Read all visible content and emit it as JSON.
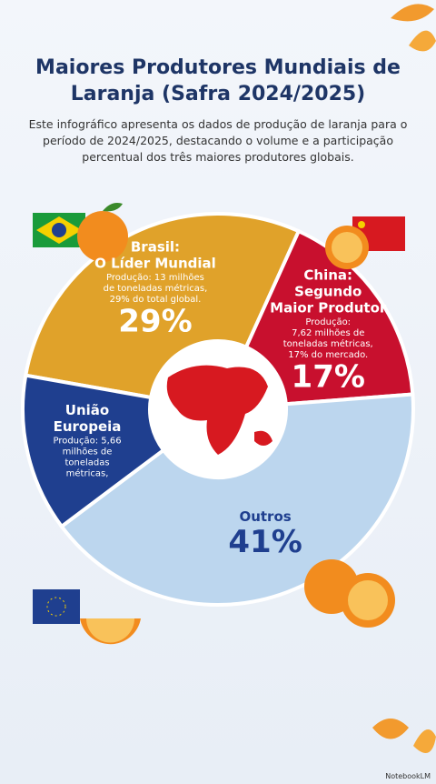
{
  "chart_data": {
    "type": "pie",
    "title": "Maiores Produtores Mundiais de Laranja (Safra 2024/2025)",
    "subtitle": "Este infográfico apresenta os dados de produção de laranja para o período de 2024/2025, destacando o volume e a participação percentual dos três maiores produtores globais.",
    "categories": [
      "Brasil",
      "China",
      "Outros",
      "União Europeia"
    ],
    "headings": [
      [
        "Brasil:",
        "O Líder Mundial"
      ],
      [
        "China:",
        "Segundo",
        "Maior Produtor"
      ],
      [
        "Outros"
      ],
      [
        "União",
        "Europeia"
      ]
    ],
    "descriptions": [
      [
        "Produção: 13 milhões",
        "de toneladas métricas,",
        "29% do total global."
      ],
      [
        "Produção:",
        "7,62 milhões de",
        "toneladas métricas,",
        "17% do mercado."
      ],
      [],
      [
        "Produção: 5,66",
        "milhões de",
        "toneladas",
        "métricas,"
      ]
    ],
    "values": [
      29,
      17,
      41,
      13
    ],
    "value_labels": [
      "29%",
      "17%",
      "41%",
      null
    ],
    "colors": [
      "#e0a22a",
      "#c8102e",
      "#bcd6ee",
      "#1f3f8f"
    ],
    "label_colors": [
      "#ffffff",
      "#ffffff",
      "#1f3f8f",
      "#ffffff"
    ],
    "watermark": "NotebookLM"
  }
}
